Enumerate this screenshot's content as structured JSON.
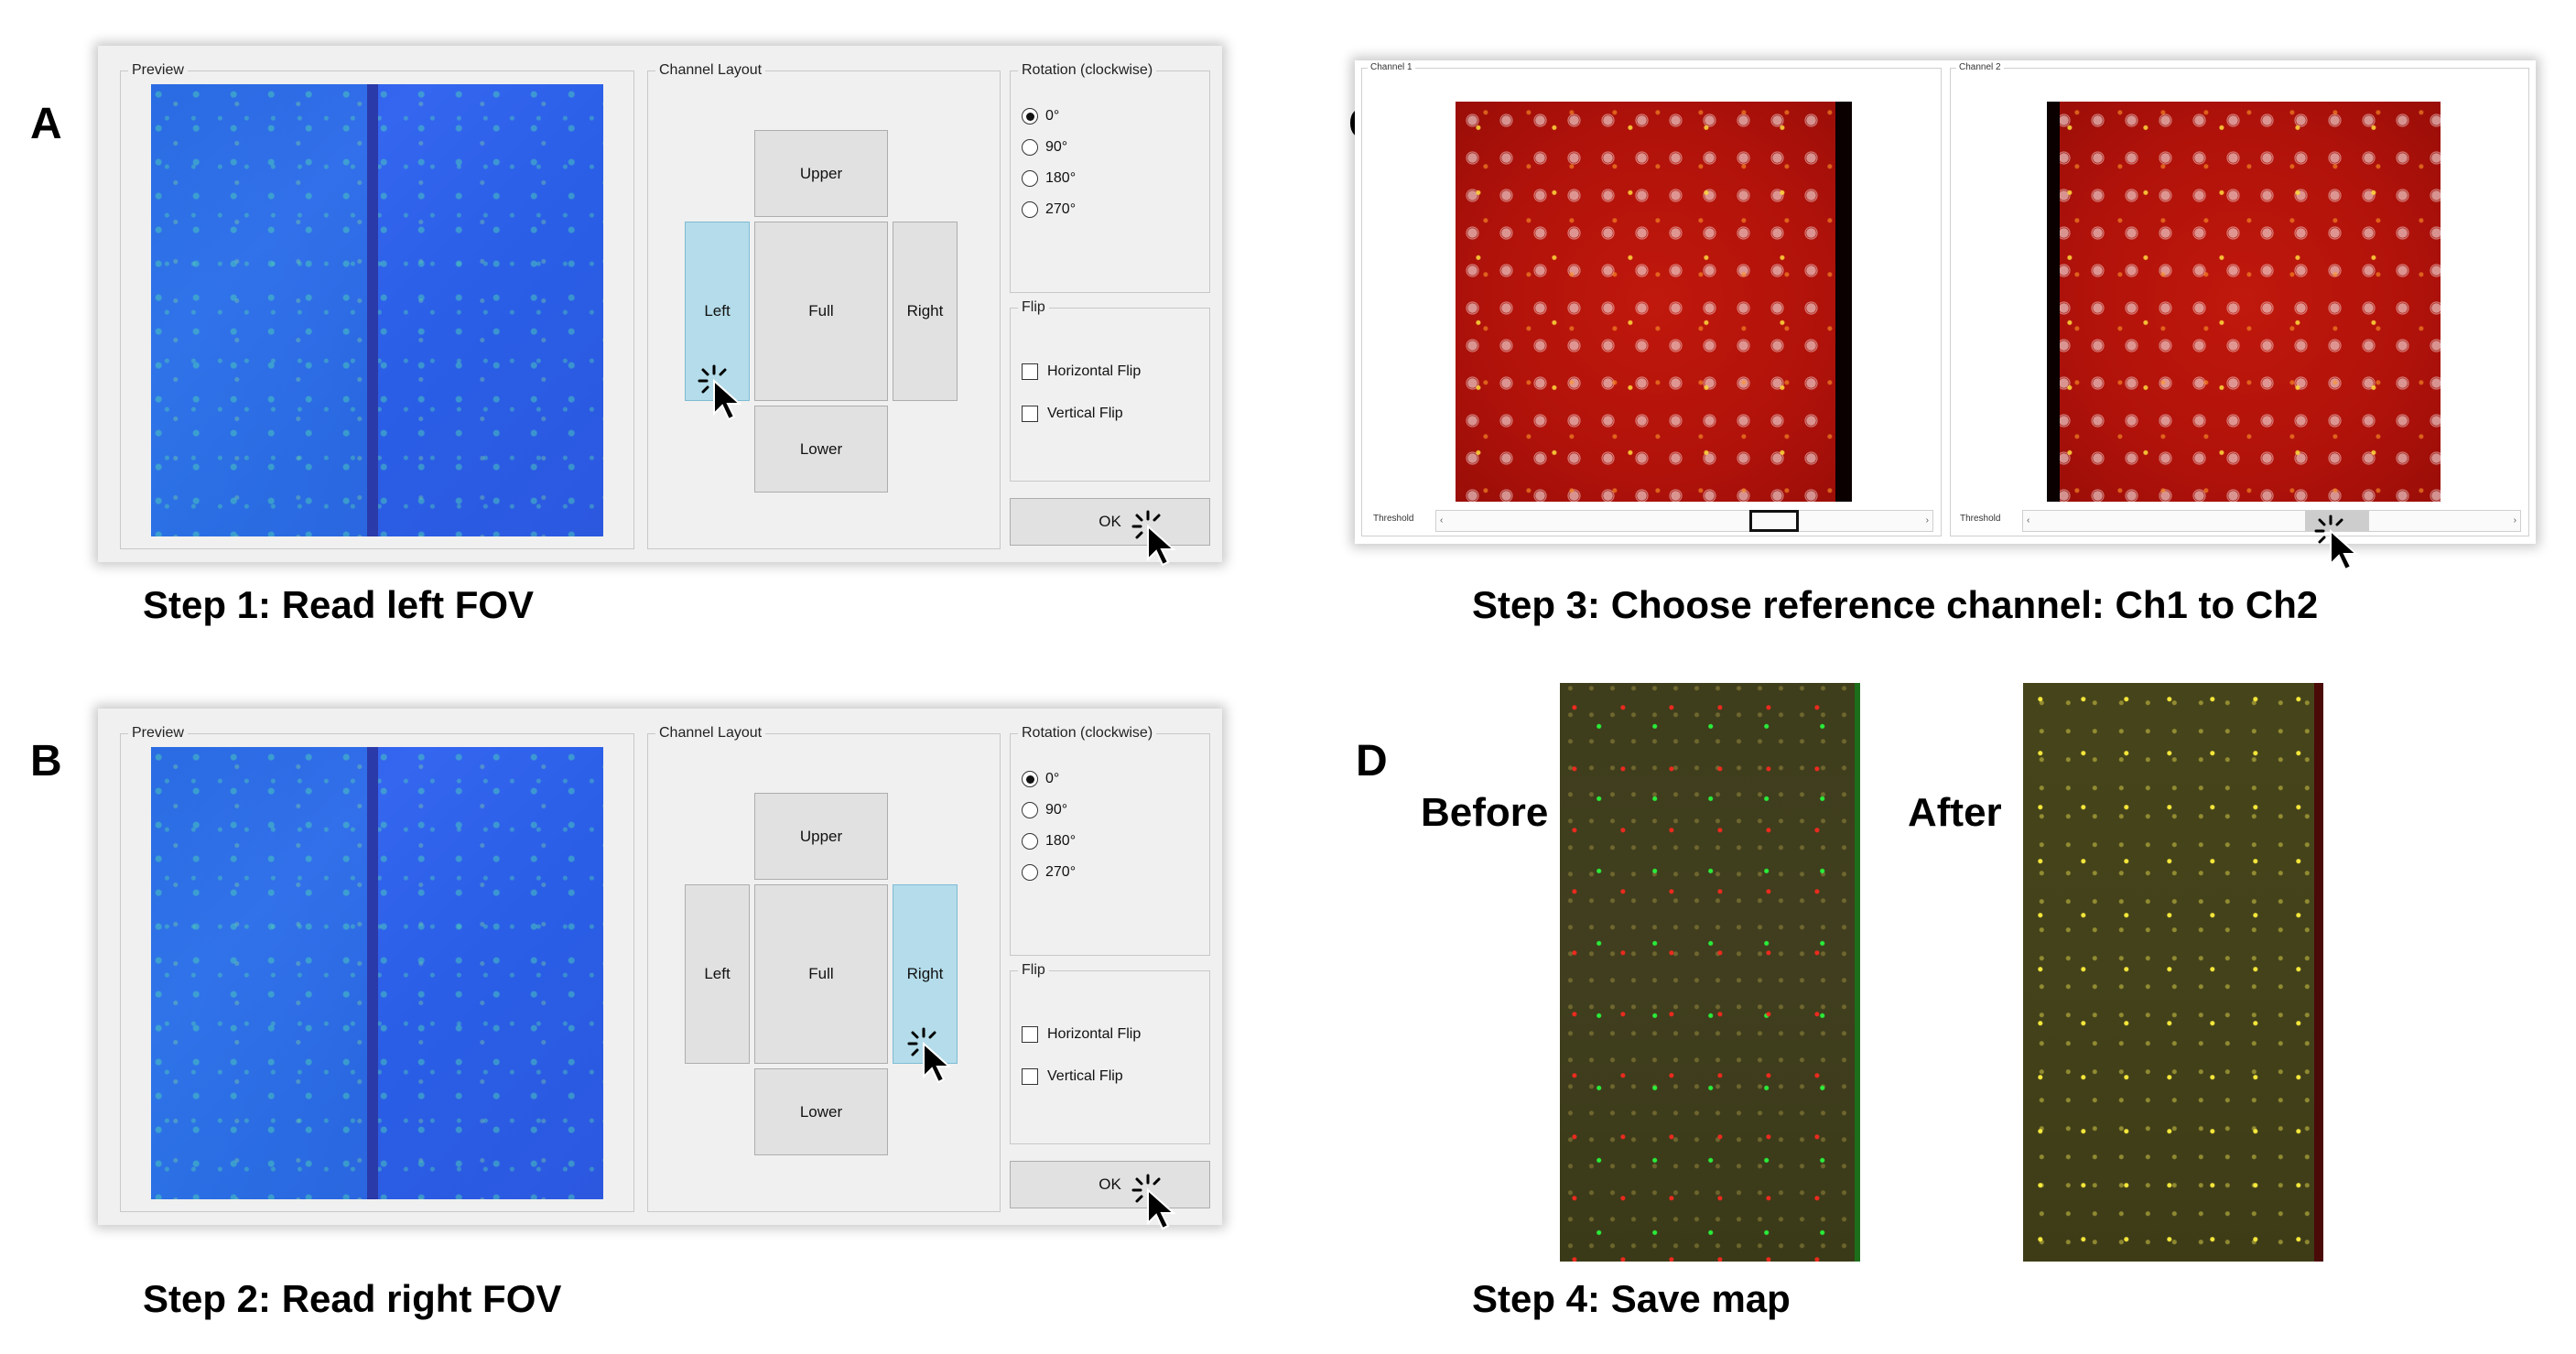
{
  "figure": {
    "letters": {
      "a": "A",
      "b": "B",
      "c": "C",
      "d": "D"
    },
    "captions": {
      "step1": "Step 1: Read left FOV",
      "step2": "Step 2: Read right FOV",
      "step3": "Step 3: Choose reference channel: Ch1 to Ch2",
      "step4": "Step 4: Save map"
    }
  },
  "dialog": {
    "preview_title": "Preview",
    "channel_layout_title": "Channel Layout",
    "rotation_title": "Rotation (clockwise)",
    "flip_title": "Flip",
    "layout_buttons": {
      "upper": "Upper",
      "left": "Left",
      "full": "Full",
      "right": "Right",
      "lower": "Lower"
    },
    "rotation_options": [
      "0°",
      "90°",
      "180°",
      "270°"
    ],
    "rotation_selected": "0°",
    "flip_options": [
      "Horizontal Flip",
      "Vertical Flip"
    ],
    "ok_label": "OK",
    "step1_selected_layout": "Left",
    "step2_selected_layout": "Right",
    "icons": {
      "radio": "radio-button-icon",
      "checkbox": "checkbox-icon",
      "cursor": "click-cursor-icon"
    }
  },
  "channels": {
    "ch1_title": "Channel 1",
    "ch2_title": "Channel 2",
    "threshold_label": "Threshold",
    "arrow_left": "‹",
    "arrow_right": "›"
  },
  "map": {
    "before_label": "Before",
    "after_label": "After"
  },
  "colors": {
    "selected_button": "#b4dcea",
    "dialog_bg": "#f0f0f0",
    "fov_blue": "#2f5fea",
    "channel_red": "#b8140a"
  }
}
